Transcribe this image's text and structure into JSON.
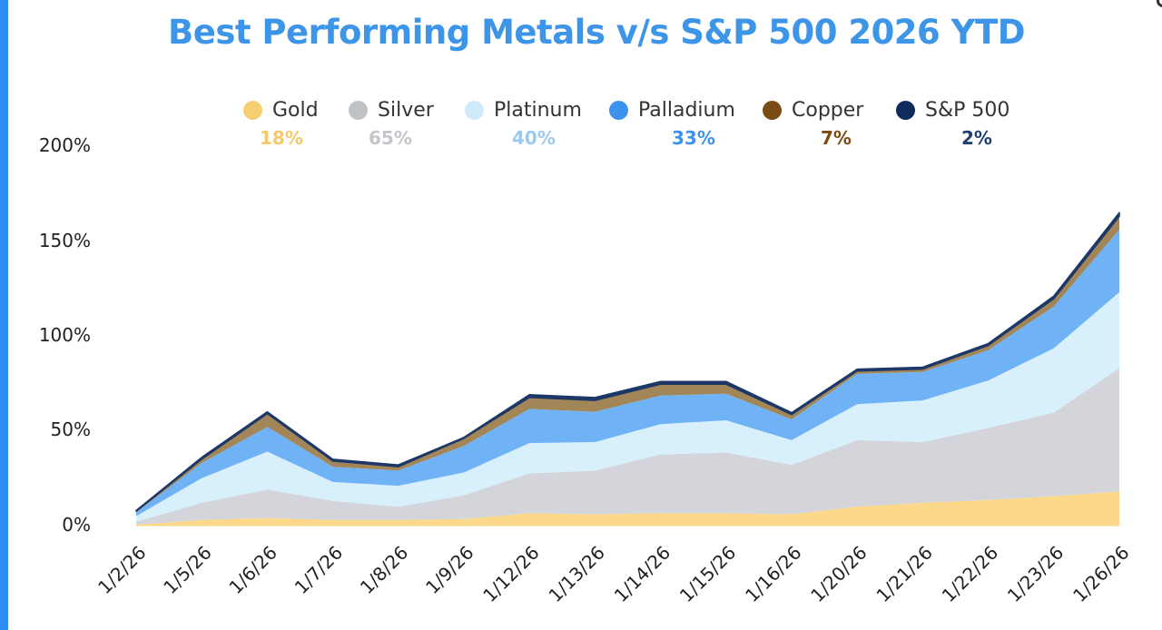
{
  "chart_data": {
    "type": "area",
    "stacked": true,
    "title": "Best Performing Metals v/s S&P 500 2026 YTD",
    "xlabel": "",
    "ylabel": "",
    "ylim": [
      0,
      200
    ],
    "y_ticks": [
      "0%",
      "50%",
      "100%",
      "150%",
      "200%"
    ],
    "categories": [
      "1/2/26",
      "1/5/26",
      "1/6/26",
      "1/7/26",
      "1/8/26",
      "1/9/26",
      "1/12/26",
      "1/13/26",
      "1/14/26",
      "1/15/26",
      "1/16/26",
      "1/20/26",
      "1/21/26",
      "1/22/26",
      "1/23/26",
      "1/26/26"
    ],
    "series": [
      {
        "name": "Gold",
        "ytd_label": "18%",
        "color": "#fcd98a",
        "legend_color": "#f6cf73",
        "label_color": "#f5c96a",
        "values": [
          0.5,
          3,
          4,
          3,
          3,
          3.5,
          6.5,
          6,
          6.5,
          6.5,
          6,
          10,
          12,
          13.5,
          15.5,
          18
        ]
      },
      {
        "name": "Silver",
        "ytd_label": "65%",
        "color": "#d3d5da",
        "legend_color": "#bfc2c7",
        "label_color": "#c4c6cb",
        "values": [
          1.5,
          9,
          15,
          10,
          7,
          12.5,
          21,
          23,
          31,
          32,
          26,
          35,
          32,
          38,
          44,
          65
        ]
      },
      {
        "name": "Platinum",
        "ytd_label": "40%",
        "color": "#d8effc",
        "legend_color": "#cfeafb",
        "label_color": "#9ccbf2",
        "values": [
          3,
          13,
          20,
          10,
          11,
          12,
          16,
          15,
          16,
          17,
          13,
          19,
          22,
          25,
          34,
          40
        ]
      },
      {
        "name": "Palladium",
        "ytd_label": "33%",
        "color": "#6fb2f6",
        "legend_color": "#3b93ee",
        "label_color": "#3b93ee",
        "values": [
          2,
          8,
          13,
          8,
          8,
          14,
          18,
          16,
          15,
          14,
          11,
          16,
          15,
          16,
          22,
          33
        ]
      },
      {
        "name": "Copper",
        "ytd_label": "7%",
        "color": "#a38657",
        "legend_color": "#7a4b12",
        "label_color": "#7a4b12",
        "values": [
          0.5,
          2,
          7,
          3,
          2,
          4,
          6,
          6,
          6,
          5,
          2.5,
          1.5,
          1.5,
          2.5,
          4,
          7
        ]
      },
      {
        "name": "S&P 500",
        "ytd_label": "2%",
        "color": "#1d3868",
        "legend_color": "#0f2b5e",
        "label_color": "#1f3f73",
        "values": [
          0.5,
          1,
          1,
          1,
          1,
          0.5,
          1.5,
          1.5,
          1.5,
          1.5,
          1,
          1,
          1,
          1,
          1.5,
          2
        ]
      }
    ]
  }
}
